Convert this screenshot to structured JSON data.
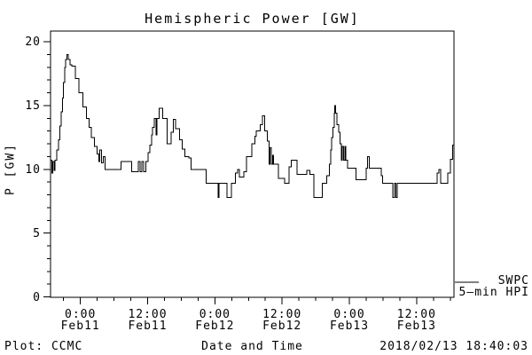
{
  "title": "Hemispheric Power [GW]",
  "footer": {
    "left": "Plot: CCMC",
    "right": "2018/02/13 18:40:03"
  },
  "legend": {
    "line1": "SWPC",
    "line2": "5–min HPI"
  },
  "colors": {
    "line": "#000000",
    "background": "#ffffff",
    "text": "#000000"
  },
  "chart_data": {
    "type": "line",
    "step": true,
    "grid": false,
    "legend_position": "right-outside",
    "title": "Hemispheric Power [GW]",
    "xlabel": "Date and Time",
    "ylabel": "P [GW]",
    "ylim": [
      0,
      20
    ],
    "y_major_ticks": [
      0,
      5,
      10,
      15,
      20
    ],
    "y_minor_step": 1,
    "x_window_hours": 72,
    "x_minor_step_hours": 3,
    "x_minor_offset_hours": 2.333,
    "x_ticks": [
      {
        "hours": 5.333,
        "time": "0:00",
        "date": "Feb11"
      },
      {
        "hours": 17.333,
        "time": "12:00",
        "date": "Feb11"
      },
      {
        "hours": 29.333,
        "time": "0:00",
        "date": "Feb12"
      },
      {
        "hours": 41.333,
        "time": "12:00",
        "date": "Feb12"
      },
      {
        "hours": 53.333,
        "time": "0:00",
        "date": "Feb13"
      },
      {
        "hours": 65.333,
        "time": "12:00",
        "date": "Feb13"
      }
    ],
    "series": [
      {
        "name": "SWPC 5-min HPI",
        "units": "GW",
        "points": [
          [
            0.0,
            10.7
          ],
          [
            0.2,
            9.7
          ],
          [
            0.4,
            10.6
          ],
          [
            0.6,
            9.9
          ],
          [
            0.8,
            10.7
          ],
          [
            1.1,
            11.5
          ],
          [
            1.4,
            12.3
          ],
          [
            1.7,
            13.4
          ],
          [
            1.9,
            14.5
          ],
          [
            2.1,
            15.6
          ],
          [
            2.3,
            16.8
          ],
          [
            2.5,
            18.0
          ],
          [
            2.7,
            18.6
          ],
          [
            2.9,
            19.0
          ],
          [
            3.2,
            18.6
          ],
          [
            3.5,
            18.2
          ],
          [
            3.8,
            18.1
          ],
          [
            4.4,
            17.1
          ],
          [
            5.1,
            16.0
          ],
          [
            5.8,
            14.9
          ],
          [
            6.4,
            14.0
          ],
          [
            6.9,
            13.3
          ],
          [
            7.3,
            12.5
          ],
          [
            7.8,
            11.8
          ],
          [
            8.3,
            11.2
          ],
          [
            8.6,
            10.6
          ],
          [
            8.8,
            11.5
          ],
          [
            9.1,
            10.5
          ],
          [
            9.4,
            11.0
          ],
          [
            9.7,
            10.0
          ],
          [
            12.6,
            10.6
          ],
          [
            14.5,
            9.8
          ],
          [
            15.7,
            10.6
          ],
          [
            16.0,
            9.8
          ],
          [
            16.3,
            10.6
          ],
          [
            16.6,
            9.8
          ],
          [
            17.0,
            10.6
          ],
          [
            17.4,
            11.3
          ],
          [
            17.7,
            11.9
          ],
          [
            18.0,
            12.7
          ],
          [
            18.2,
            13.3
          ],
          [
            18.5,
            14.0
          ],
          [
            18.8,
            12.7
          ],
          [
            19.0,
            14.0
          ],
          [
            19.4,
            14.8
          ],
          [
            20.0,
            14.0
          ],
          [
            20.8,
            12.0
          ],
          [
            21.5,
            12.9
          ],
          [
            21.9,
            13.9
          ],
          [
            22.3,
            13.2
          ],
          [
            23.0,
            12.3
          ],
          [
            23.5,
            11.6
          ],
          [
            24.0,
            11.0
          ],
          [
            24.7,
            10.9
          ],
          [
            25.1,
            10.0
          ],
          [
            27.8,
            8.9
          ],
          [
            29.9,
            7.8
          ],
          [
            30.1,
            8.9
          ],
          [
            31.5,
            7.8
          ],
          [
            32.3,
            8.9
          ],
          [
            33.0,
            9.7
          ],
          [
            33.4,
            10.0
          ],
          [
            33.7,
            9.4
          ],
          [
            34.5,
            9.8
          ],
          [
            35.0,
            11.0
          ],
          [
            35.9,
            12.0
          ],
          [
            36.5,
            12.6
          ],
          [
            36.7,
            13.0
          ],
          [
            37.4,
            13.5
          ],
          [
            37.8,
            14.2
          ],
          [
            38.2,
            13.0
          ],
          [
            38.7,
            12.2
          ],
          [
            39.0,
            10.4
          ],
          [
            39.2,
            11.7
          ],
          [
            39.4,
            10.4
          ],
          [
            39.6,
            11.1
          ],
          [
            39.8,
            10.4
          ],
          [
            40.7,
            9.3
          ],
          [
            41.8,
            8.9
          ],
          [
            42.6,
            10.2
          ],
          [
            43.0,
            10.7
          ],
          [
            44.0,
            9.6
          ],
          [
            45.7,
            9.9
          ],
          [
            46.3,
            9.6
          ],
          [
            47.0,
            7.8
          ],
          [
            48.5,
            8.9
          ],
          [
            49.3,
            9.5
          ],
          [
            49.8,
            10.4
          ],
          [
            50.0,
            11.5
          ],
          [
            50.2,
            12.5
          ],
          [
            50.4,
            13.3
          ],
          [
            50.6,
            14.4
          ],
          [
            50.75,
            15.0
          ],
          [
            50.9,
            14.4
          ],
          [
            51.1,
            13.5
          ],
          [
            51.4,
            12.9
          ],
          [
            51.7,
            12.0
          ],
          [
            51.9,
            10.7
          ],
          [
            52.1,
            11.8
          ],
          [
            52.3,
            10.7
          ],
          [
            52.5,
            11.8
          ],
          [
            52.7,
            10.7
          ],
          [
            53.0,
            10.1
          ],
          [
            54.5,
            9.2
          ],
          [
            56.3,
            10.1
          ],
          [
            56.6,
            11.0
          ],
          [
            56.9,
            10.1
          ],
          [
            59.0,
            9.5
          ],
          [
            59.3,
            8.9
          ],
          [
            61.1,
            7.8
          ],
          [
            61.4,
            8.9
          ],
          [
            61.6,
            7.8
          ],
          [
            61.9,
            8.9
          ],
          [
            69.0,
            9.7
          ],
          [
            69.3,
            10.0
          ],
          [
            69.6,
            8.9
          ],
          [
            70.9,
            9.7
          ],
          [
            71.4,
            10.8
          ],
          [
            71.8,
            11.9
          ],
          [
            72.0,
            12.0
          ]
        ]
      }
    ]
  }
}
